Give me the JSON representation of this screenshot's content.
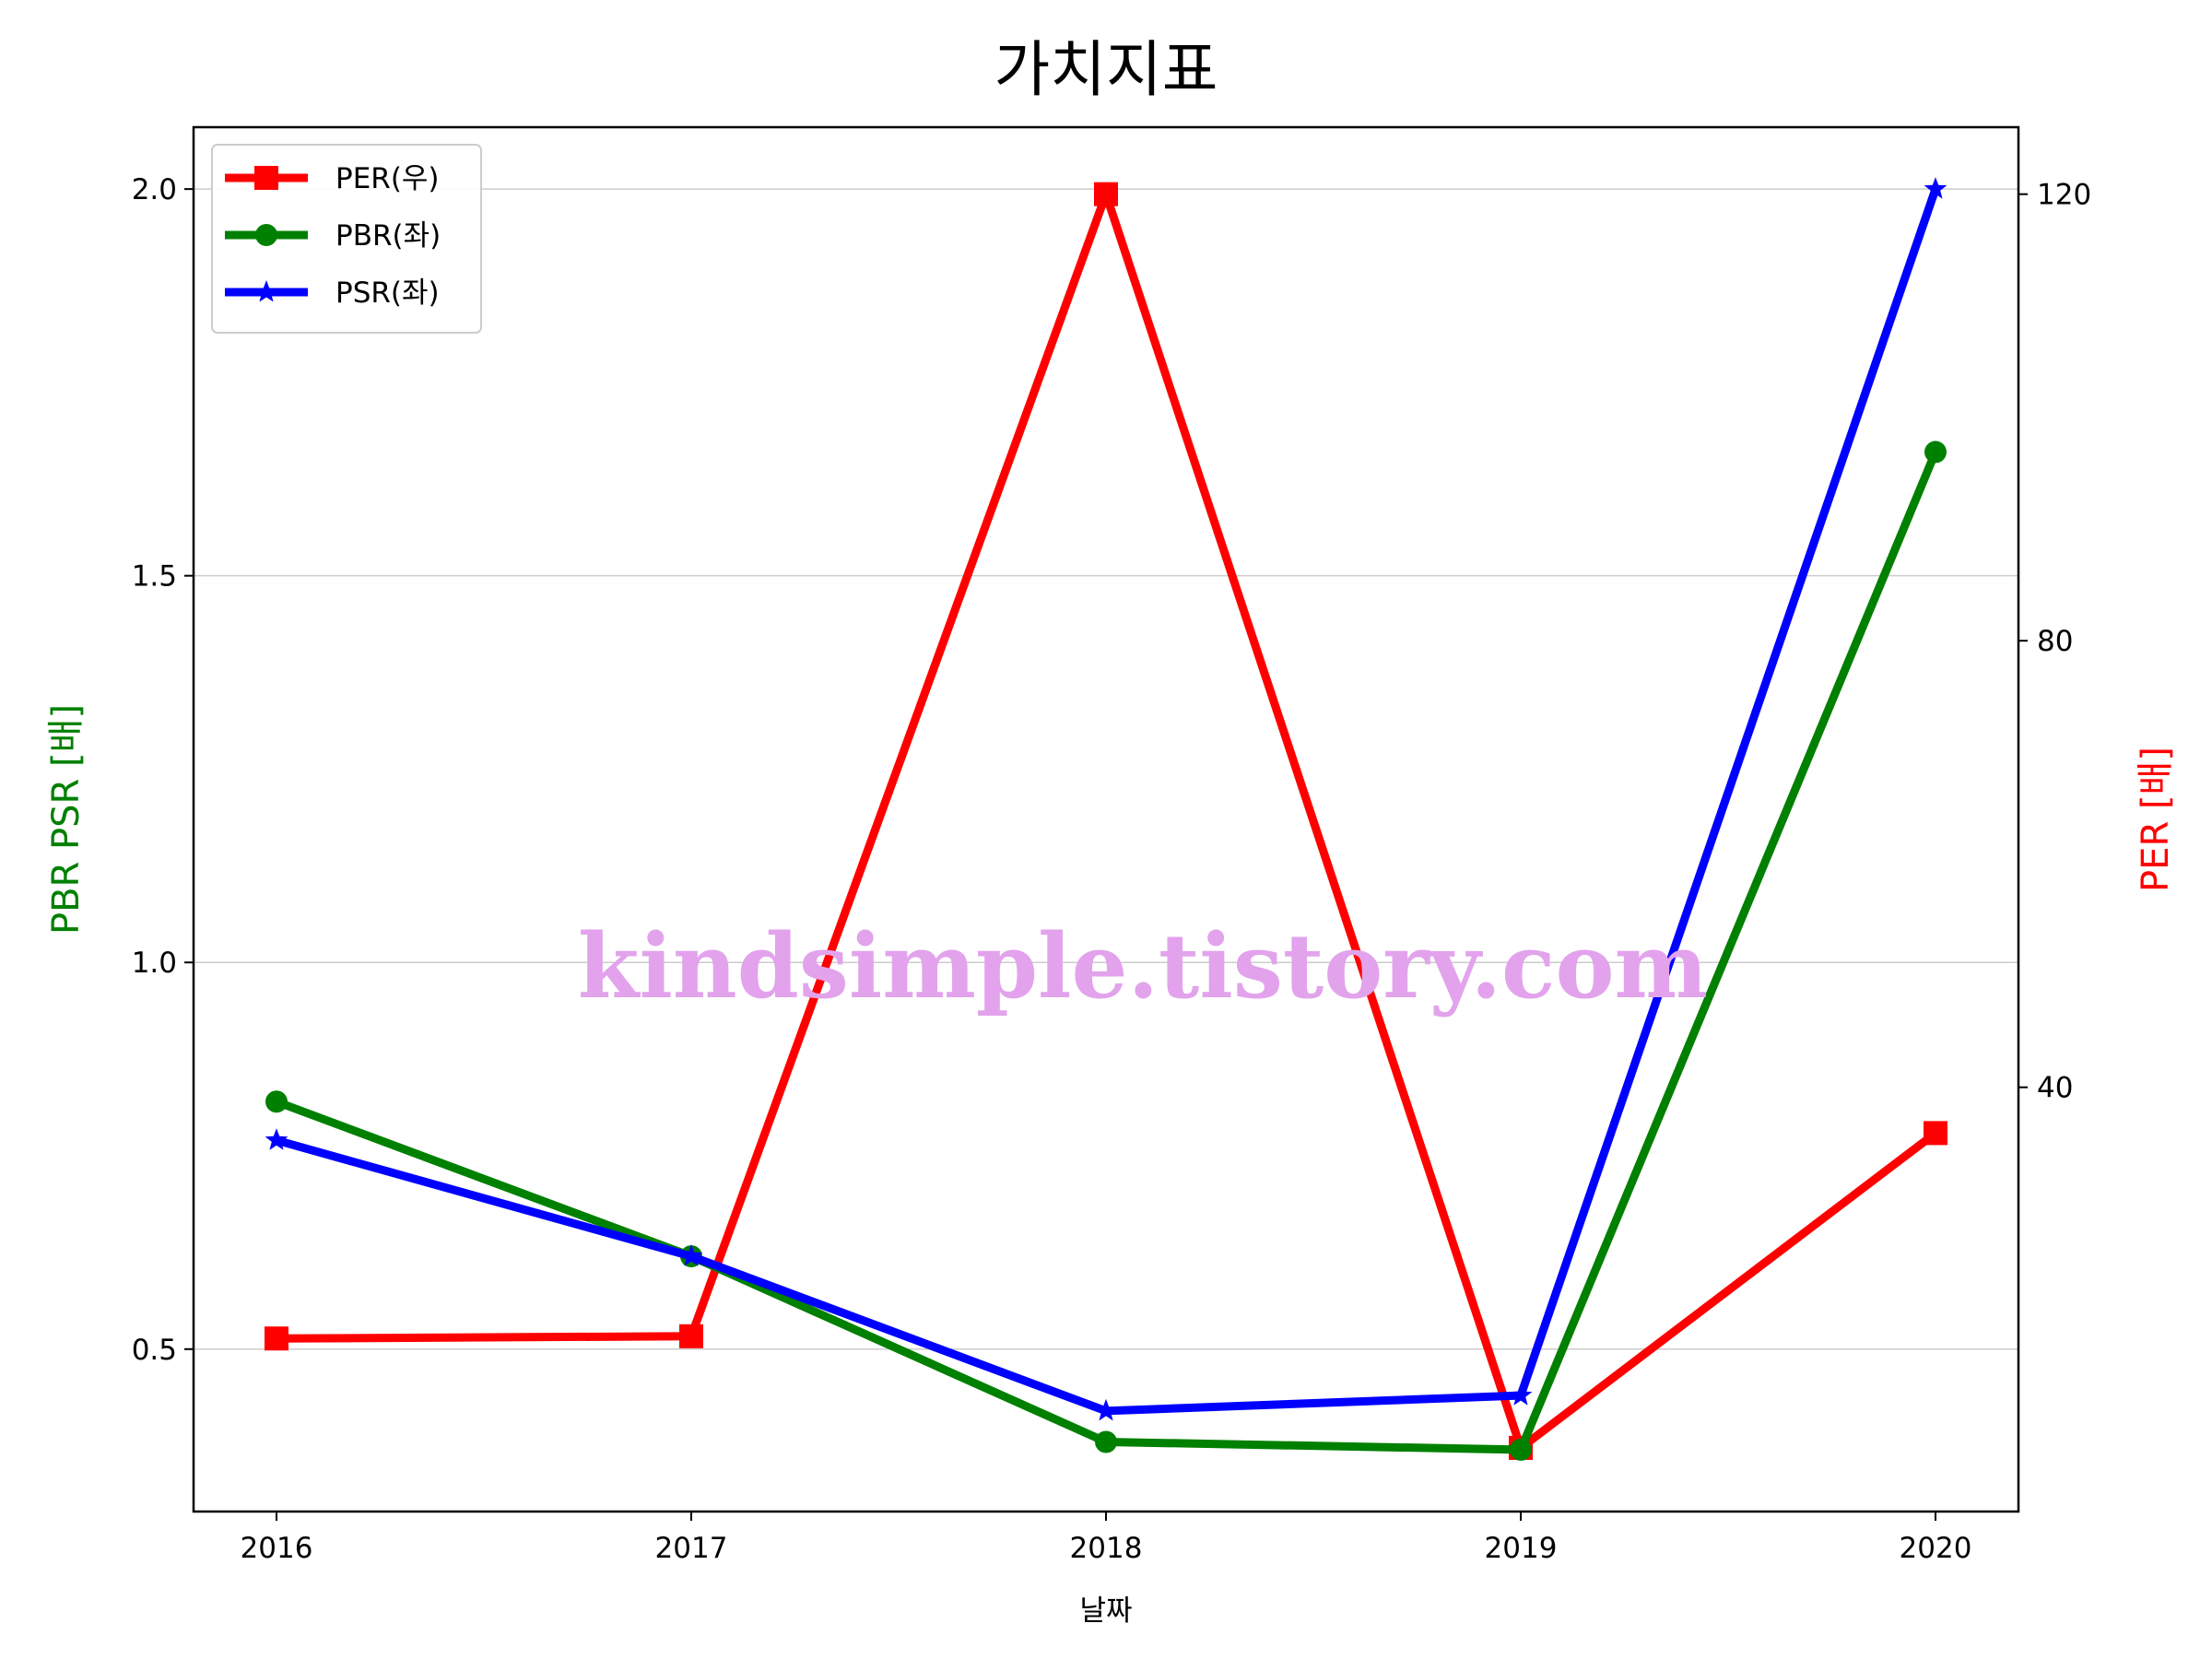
{
  "chart_data": {
    "type": "line",
    "title": "가치지표",
    "xlabel": "날짜",
    "ylabel_left": "PBR PSR [배]",
    "ylabel_right": "PER [배]",
    "x": [
      "2016",
      "2017",
      "2018",
      "2019",
      "2020"
    ],
    "ylim_left": [
      0.29,
      2.08
    ],
    "ylim_right": [
      2.0,
      126.0
    ],
    "yticks_left": [
      "0.5",
      "1.0",
      "1.5",
      "2.0"
    ],
    "yticks_right": [
      "40",
      "80",
      "120"
    ],
    "grid": "horizontal",
    "legend_position": "top-left",
    "series": [
      {
        "name": "PER(우)",
        "axis": "right",
        "marker": "square",
        "color": "#ff0000",
        "values": [
          17.5,
          17.7,
          120.0,
          7.7,
          35.9
        ]
      },
      {
        "name": "PBR(좌)",
        "axis": "left",
        "marker": "circle",
        "color": "#008000",
        "values": [
          0.82,
          0.62,
          0.38,
          0.37,
          1.66
        ]
      },
      {
        "name": "PSR(좌)",
        "axis": "left",
        "marker": "star",
        "color": "#0000ff",
        "values": [
          0.77,
          0.62,
          0.42,
          0.44,
          2.0
        ]
      }
    ],
    "watermark": "kindsimple.tistory.com",
    "watermark_color": "#e2a3ec"
  }
}
